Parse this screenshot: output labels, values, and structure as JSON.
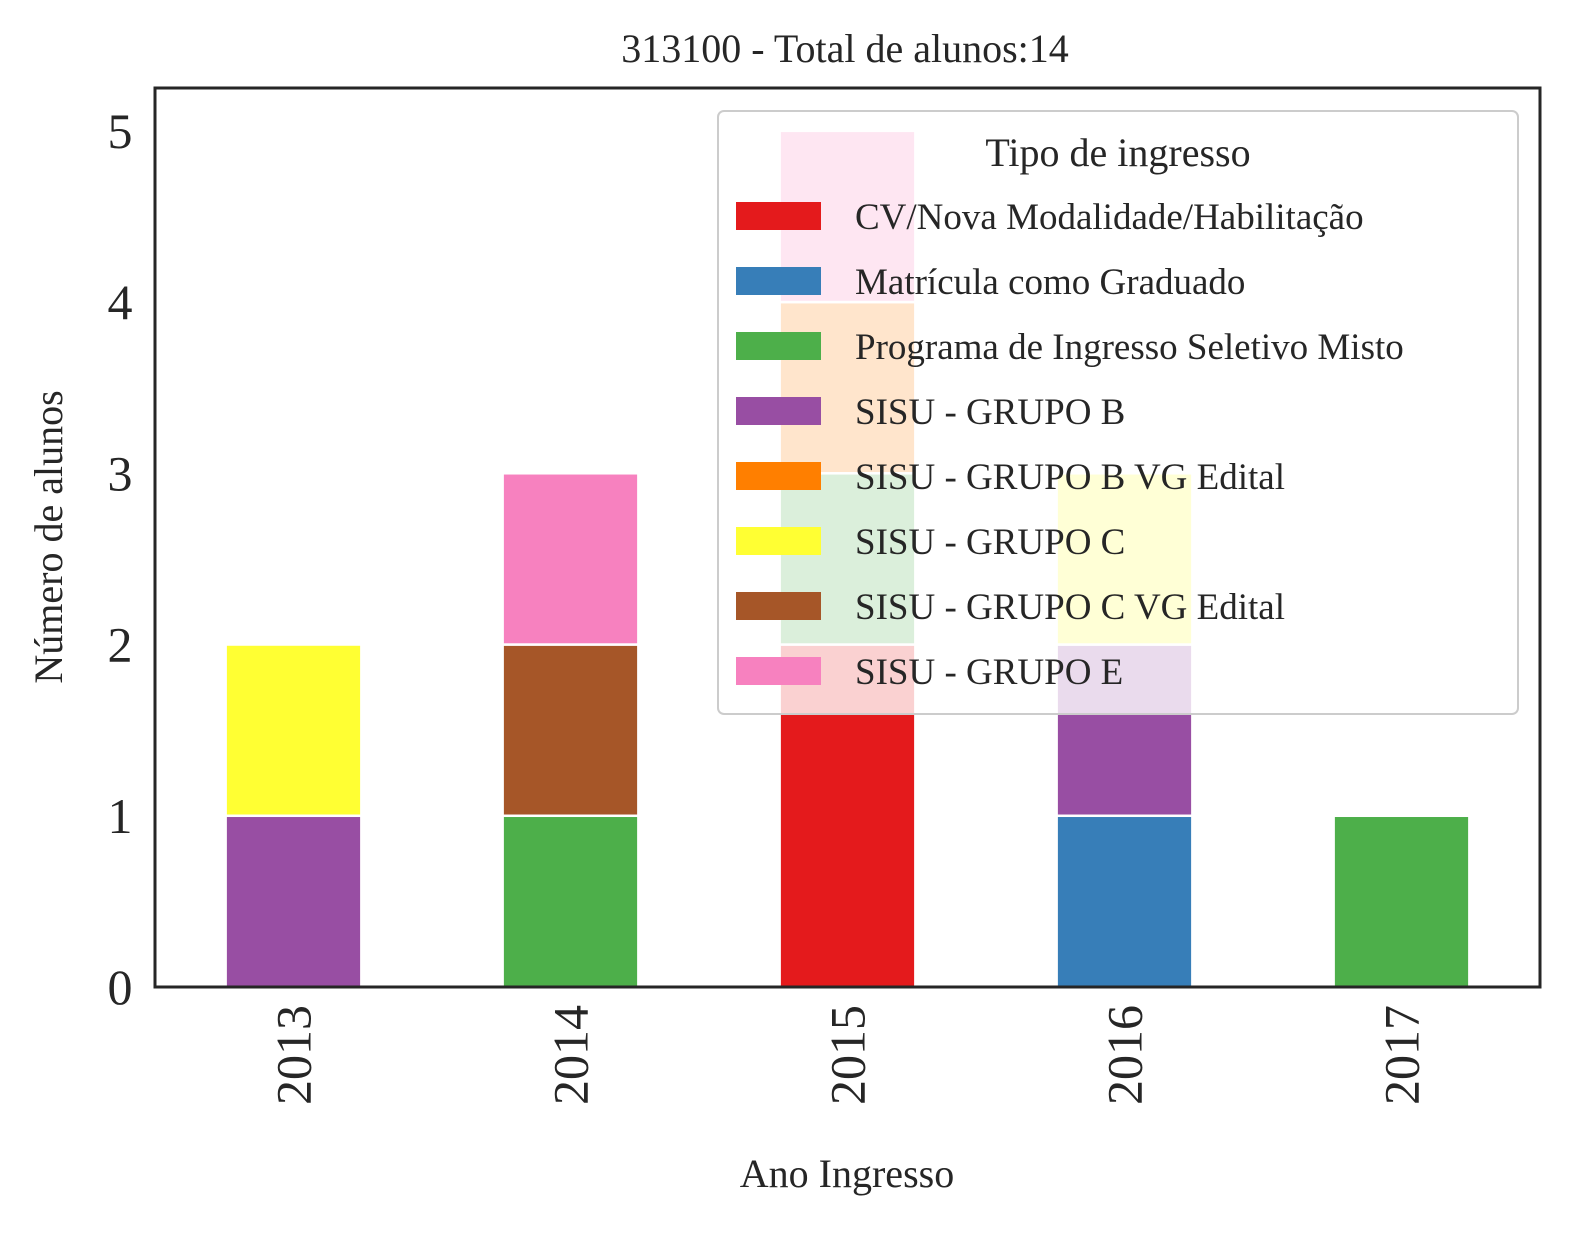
{
  "chart_data": {
    "type": "bar",
    "stacked": true,
    "title": "313100 - Total de alunos:14",
    "xlabel": "Ano Ingresso",
    "ylabel": "Número de alunos",
    "categories": [
      "2013",
      "2014",
      "2015",
      "2016",
      "2017"
    ],
    "ylim": [
      0,
      5.25
    ],
    "yticks": [
      "0",
      "1",
      "2",
      "3",
      "4",
      "5"
    ],
    "grid": false,
    "legend": {
      "title": "Tipo de ingresso",
      "placement": "top-right"
    },
    "series": [
      {
        "name": "CV/Nova Modalidade/Habilitação",
        "color": "#e41a1c",
        "values": [
          0,
          0,
          2,
          0,
          0
        ]
      },
      {
        "name": "Matrícula como Graduado",
        "color": "#377eb8",
        "values": [
          0,
          0,
          0,
          1,
          0
        ]
      },
      {
        "name": "Programa de Ingresso Seletivo Misto",
        "color": "#4daf4a",
        "values": [
          0,
          1,
          1,
          0,
          1
        ]
      },
      {
        "name": "SISU - GRUPO B",
        "color": "#984ea3",
        "values": [
          1,
          0,
          0,
          1,
          0
        ]
      },
      {
        "name": "SISU - GRUPO B VG Edital",
        "color": "#ff7f00",
        "values": [
          0,
          0,
          1,
          0,
          0
        ]
      },
      {
        "name": "SISU - GRUPO C",
        "color": "#ffff33",
        "values": [
          1,
          0,
          0,
          1,
          0
        ]
      },
      {
        "name": "SISU - GRUPO C VG Edital",
        "color": "#a65628",
        "values": [
          0,
          1,
          0,
          0,
          0
        ]
      },
      {
        "name": "SISU - GRUPO E",
        "color": "#f781bf",
        "values": [
          0,
          1,
          1,
          0,
          0
        ]
      }
    ]
  }
}
